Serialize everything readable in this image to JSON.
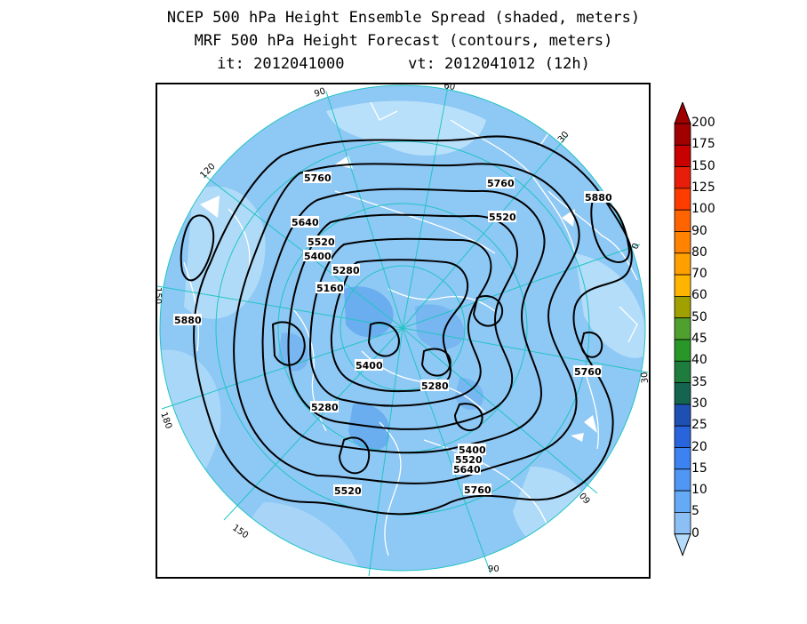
{
  "title": {
    "line1": "NCEP 500 hPa Height Ensemble Spread (shaded, meters)",
    "line2": "MRF 500 hPa Height Forecast (contours, meters)",
    "line3": "it: 2012041000       vt: 2012041012 (12h)"
  },
  "map": {
    "projection": "north-polar-stereographic",
    "ocean_color": "#9dd0f7",
    "disk_color": "#8ec8f5",
    "grid_color": "#22c4c4",
    "coast_color": "#ffffff",
    "contour_color": "#000000",
    "longitude_labels": [
      "60",
      "30",
      "0",
      "30",
      "60",
      "90",
      "120",
      "150",
      "180",
      "150",
      "120",
      "90"
    ],
    "contour_labels": [
      "5760",
      "5760",
      "5880",
      "5640",
      "5520",
      "5520",
      "5400",
      "5280",
      "5160",
      "5880",
      "5400",
      "5280",
      "5760",
      "5280",
      "5400",
      "5520",
      "5640",
      "5520",
      "5760"
    ]
  },
  "colorbar": {
    "levels": [
      "200",
      "175",
      "150",
      "125",
      "100",
      "90",
      "80",
      "70",
      "60",
      "50",
      "45",
      "40",
      "35",
      "30",
      "25",
      "20",
      "15",
      "10",
      "5",
      "0"
    ],
    "colors": [
      "#a00000",
      "#c80000",
      "#e81e0a",
      "#ff3c00",
      "#ff6400",
      "#ff8200",
      "#ffa000",
      "#ffb400",
      "#a0a000",
      "#50a030",
      "#289628",
      "#1e7d3c",
      "#146450",
      "#1e50b4",
      "#2864dc",
      "#3c82f0",
      "#5096f5",
      "#64aaf5",
      "#8cc0f5",
      "#b4dcfa"
    ]
  }
}
